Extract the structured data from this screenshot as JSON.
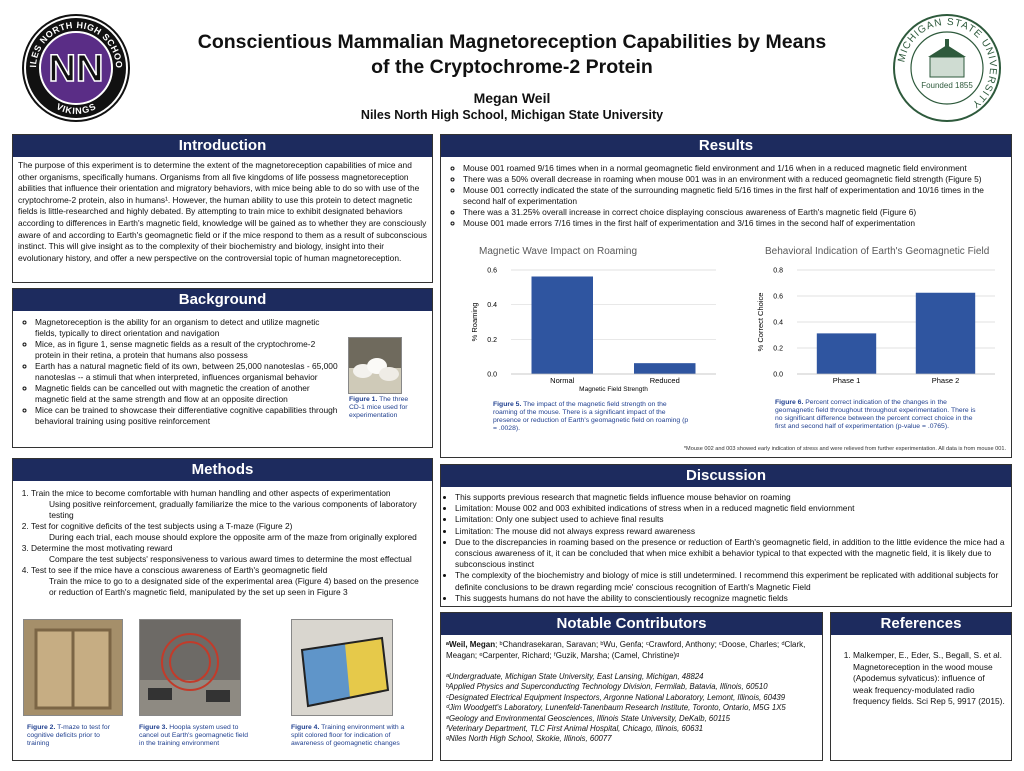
{
  "header": {
    "title": "Conscientious Mammalian Magnetoreception Capabilities by Means of the Cryptochrome-2 Protein",
    "author": "Megan Weil",
    "affiliation": "Niles North High School, Michigan State University"
  },
  "logos": {
    "left": {
      "ring_top": "NILES NORTH HIGH SCHOOL",
      "monogram": "NN",
      "ring_bottom": "VIKINGS"
    },
    "right": {
      "ring": "MICHIGAN STATE UNIVERSITY",
      "founded": "Founded 1855"
    }
  },
  "introduction": {
    "heading": "Introduction",
    "text": "The purpose of this experiment is to determine the extent of the magnetoreception capabilities of mice and other organisms, specifically humans. Organisms from all five kingdoms of life possess magnetoreception abilities that influence their orientation and migratory behaviors, with mice being able to do so with use of the cryptochrome-2 protein, also in humans¹. However, the human ability to use this protein to detect magnetic fields is little-researched and highly debated. By attempting to train mice to exhibit designated behaviors according to differences in Earth's magnetic field, knowledge will be gained as to whether they are consciously aware of and according to Earth's geomagnetic field or if the mice respond to them as a result of subconscious instinct. This will give insight as to the complexity of their biochemistry and biology, insight into their evolutionary history, and offer a new perspective on the controversial topic of human magnetoreception."
  },
  "background": {
    "heading": "Background",
    "items": [
      "Magnetoreception is the ability for an organism to detect and utilize magnetic fields, typically to direct orientation and navigation",
      "Mice, as in figure 1, sense magnetic fields as a result of the cryptochrome-2 protein in their retina, a protein that humans also possess",
      "Earth has a natural magnetic field of its own, between 25,000 nanoteslas - 65,000 nanoteslas -- a stimuli that when interpreted, influences organismal behavior",
      "Magnetic fields can be cancelled out with magnetic the creation of another magnetic field at the same strength and flow at an opposite direction",
      "Mice can be trained to showcase their differentiative cognitive capabilities through behavioral training using positive reinforcement"
    ],
    "figure": {
      "label": "Figure 1.",
      "text": "The three CD-1 mice used for experimentation"
    }
  },
  "methods": {
    "heading": "Methods",
    "steps": [
      {
        "title": "Train the mice to become comfortable with human handling and other aspects of experimentation",
        "detail": "Using positive reinforcement, gradually familiarize the mice to the various components of laboratory testing"
      },
      {
        "title": "Test for cognitive deficits of the test subjects using a T-maze (Figure 2)",
        "detail": "During each trial, each mouse should explore the opposite arm of the maze from originally explored"
      },
      {
        "title": "Determine the most motivating reward",
        "detail": "Compare the test subjects' responsiveness to various award times to determine the most effectual"
      },
      {
        "title": "Test to see if the mice have a conscious awareness of Earth's geomagnetic field",
        "detail": "Train the mice to go to a designated side of the experimental area (Figure 4) based on the presence or reduction of Earth's magnetic field, manipulated by the set up seen in Figure 3"
      }
    ],
    "figures": [
      {
        "label": "Figure 2.",
        "text": "T-maze to test for cognitive deficits prior to training"
      },
      {
        "label": "Figure 3.",
        "text": "Hoopla system used to cancel out Earth's geomagnetic field in the training environment"
      },
      {
        "label": "Figure 4.",
        "text": "Training environment with a split colored floor for indication of awareness of geomagnetic changes"
      }
    ]
  },
  "results": {
    "heading": "Results",
    "items": [
      "Mouse 001 roamed 9/16 times when in a normal geomagnetic field environment and 1/16 when in a reduced magnetic field environment",
      "There was a 50% overall decrease in roaming when mouse 001 was in an environment with a reduced geomagnetic field strength (Figure 5)",
      "Mouse 001 correctly indicated the state of the surrounding magnetic field 5/16 times in the first half of experimentation and 10/16 times in the second half of experimentation",
      "There was a 31.25% overall increase in correct choice displaying conscious awareness of Earth's magnetic field (Figure 6)",
      "Mouse 001 made errors 7/16 times in the first half of experimentation and 3/16 times in the second half of experimentation"
    ],
    "charts": [
      {
        "type": "bar",
        "title": "Magnetic Wave Impact on Roaming",
        "ylabel": "% Roaming",
        "xlabel": "Magnetic Field Strength",
        "categories": [
          "Normal",
          "Reduced"
        ],
        "values": [
          0.5625,
          0.0625
        ],
        "color": "#2f55a0",
        "ylim": [
          0,
          0.6
        ],
        "yticks": [
          {
            "value": 0,
            "label": "0.0"
          },
          0.2,
          0.4,
          0.6
        ],
        "grid": true
      },
      {
        "type": "bar",
        "title": "Behavioral Indication of Earth's Geomagnetic Field",
        "ylabel": "% Correct Choice",
        "categories": [
          "Phase 1",
          "Phase 2"
        ],
        "values": [
          0.3125,
          0.625
        ],
        "color": "#2f55a0",
        "ylim": [
          0,
          0.8
        ],
        "yticks": [
          {
            "value": 0,
            "label": "0.0"
          },
          0.2,
          0.4,
          0.6,
          0.8
        ],
        "grid": true
      }
    ],
    "captions": [
      {
        "label": "Figure 5.",
        "text": "The impact of the magnetic field strength on the roaming of the mouse. There is a significant impact of the presence or reduction of Earth's geomagnetic field on roaming (p = .0028)."
      },
      {
        "label": "Figure 6.",
        "text": "Percent correct indication of the changes in the geomagnetic field throughout throughout experimentation. There is no significant difference between the percent correct choice in the first and second half of experimentation (p-value = .0765)."
      }
    ],
    "note": "*Mouse 002 and 003 showed early indication of stress and were relieved from further experimentation. All data is from mouse 001."
  },
  "discussion": {
    "heading": "Discussion",
    "items": [
      "This supports previous research that magnetic fields influence mouse behavior on roaming",
      "Limitation: Mouse 002 and 003 exhibited indications of stress when in a reduced magnetic field enviornment",
      "Limitation: Only one subject used to achieve final results",
      "Limitation: The mouse did not always express reward awareness",
      "Due to the discrepancies in roaming based on the presence or reduction of Earth's geomagnetic field, in addition to the little evidence the mice had a conscious awareness of it, it can be concluded that when mice exhibit a behavior typical to that expected with the magnetic field, it is likely due to subconscious instinct",
      "The complexity of the biochemistry and biology of mice is still undetermined. I recommend this experiment be replicated with additional subjects for definite conclusions to be drawn regarding mcie' conscious recognition of Earth's Magnetic Field",
      "This suggests humans do not have the ability to conscientiously recognize magnetic fields"
    ]
  },
  "contributors": {
    "heading": "Notable Contributors",
    "lead": "ᵃWeil, Megan",
    "names": "; ᵇChandrasekaran, Saravan; ᵇWu, Genfa; ᶜCrawford, Anthony; ᶜDoose, Charles; ᵈClark, Meagan; ᵉCarpenter, Richard; ᶠGuzik, Marsha; (Camel, Christine)ᵍ",
    "affiliations": [
      "ᵃUndergraduate, Michigan State University, East Lansing, Michigan, 48824",
      "ᵇApplied Physics and Superconducting Technology Division, Fermilab, Batavia, Illinois, 60510",
      "ᶜDesignated Electrical Equipment Inspectors, Argonne National Laboratory, Lemont, Illinois, 60439",
      "ᵈJim Woodgett's Laboratory, Lunenfeld-Tanenbaum Research Institute, Toronto, Ontario, M5G 1X5",
      "ᵉGeology and Environmental Geosciences, Illinois State University, DeKalb, 60115",
      "ᶠVeterinary Department, TLC First Animal Hospital, Chicago, Illinois, 60631",
      "ᵍNiles North High School, Skokie, Illinois, 60077"
    ]
  },
  "references": {
    "heading": "References",
    "items": [
      "Malkemper, E., Eder, S., Begall, S. et al. Magnetoreception in the wood mouse (Apodemus sylvaticus): influence of weak frequency-modulated radio frequency fields. Sci Rep 5, 9917 (2015)."
    ]
  }
}
